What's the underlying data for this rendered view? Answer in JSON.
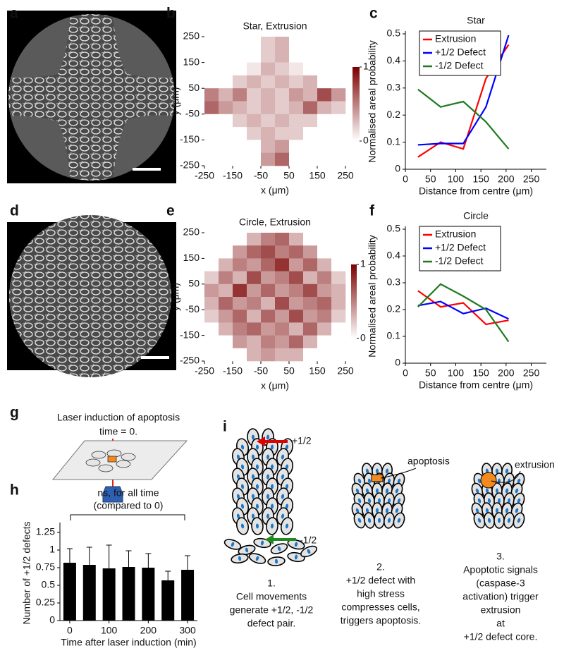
{
  "panel_labels": [
    "a",
    "b",
    "c",
    "d",
    "e",
    "f",
    "g",
    "h",
    "i"
  ],
  "panel_g": {
    "lines": [
      "Laser induction of apoptosis",
      "time = 0."
    ]
  },
  "panel_i": {
    "labels": [
      "+1/2",
      "-1/2",
      "apoptosis",
      "extrusion"
    ],
    "steps": [
      [
        "1.",
        "Cell movements",
        "generate +1/2, -1/2",
        "defect pair."
      ],
      [
        "2.",
        "+1/2 defect with",
        "high stress",
        "compresses cells,",
        "triggers apoptosis."
      ],
      [
        "3.",
        "Apoptotic signals",
        "(caspase-3",
        "activation) trigger",
        "extrusion",
        "at",
        "+1/2 defect core."
      ]
    ]
  },
  "chart_data": [
    {
      "type": "heatmap",
      "title": "Star, Extrusion",
      "x_label": "x (μm)",
      "y_label": "y (μm)",
      "xlim": [
        -250,
        250
      ],
      "ylim": [
        -250,
        250
      ],
      "xticks": [
        -250,
        -150,
        -50,
        50,
        150,
        250
      ],
      "yticks": [
        -250,
        -150,
        -50,
        50,
        150,
        250
      ],
      "clim": [
        0,
        1
      ],
      "colorbar_ticks": [
        0,
        1
      ],
      "colors": [
        "#ffffff",
        "#7a0000"
      ],
      "z": [
        [
          0,
          0,
          0,
          0,
          0.2,
          0.3,
          0,
          0,
          0,
          0
        ],
        [
          0,
          0,
          0,
          0,
          0.2,
          0.3,
          0,
          0,
          0,
          0
        ],
        [
          0,
          0,
          0,
          0.1,
          0.3,
          0.2,
          0.1,
          0,
          0,
          0
        ],
        [
          0,
          0,
          0.2,
          0.3,
          0.2,
          0.3,
          0.2,
          0.3,
          0,
          0
        ],
        [
          0.5,
          0.3,
          0.5,
          0.2,
          0.3,
          0.2,
          0.4,
          0.3,
          0.7,
          0.4
        ],
        [
          0.6,
          0.4,
          0.3,
          0.2,
          0.3,
          0.2,
          0.3,
          0.6,
          0.3,
          0.2
        ],
        [
          0,
          0,
          0.2,
          0.3,
          0.2,
          0.3,
          0.2,
          0.2,
          0,
          0
        ],
        [
          0,
          0,
          0,
          0.2,
          0.3,
          0.2,
          0.2,
          0,
          0,
          0
        ],
        [
          0,
          0,
          0,
          0,
          0.3,
          0.4,
          0,
          0,
          0,
          0
        ],
        [
          0,
          0,
          0,
          0,
          0.4,
          0.6,
          0,
          0,
          0,
          0
        ]
      ]
    },
    {
      "type": "line",
      "title": "Star",
      "x_label": "Distance from centre (μm)",
      "y_label": "Normalised areal probability",
      "x": [
        25,
        70,
        115,
        160,
        205
      ],
      "xlim": [
        0,
        280
      ],
      "ylim": [
        0,
        0.5
      ],
      "xticks": [
        0,
        50,
        100,
        150,
        200,
        250
      ],
      "yticks": [
        0,
        0.1,
        0.2,
        0.3,
        0.4,
        0.5
      ],
      "legend": "upper left",
      "series": [
        {
          "name": "Extrusion",
          "color": "#ff0000",
          "values": [
            0.045,
            0.1,
            0.075,
            0.335,
            0.46
          ]
        },
        {
          "name": "+1/2 Defect",
          "color": "#0000ff",
          "values": [
            0.09,
            0.095,
            0.095,
            0.23,
            0.495
          ]
        },
        {
          "name": "-1/2 Defect",
          "color": "#1f7a1f",
          "values": [
            0.295,
            0.23,
            0.25,
            0.175,
            0.075
          ]
        }
      ]
    },
    {
      "type": "heatmap",
      "title": "Circle, Extrusion",
      "x_label": "x (μm)",
      "y_label": "y (μm)",
      "xlim": [
        -250,
        250
      ],
      "ylim": [
        -250,
        250
      ],
      "xticks": [
        -250,
        -150,
        -50,
        50,
        150,
        250
      ],
      "yticks": [
        -250,
        -150,
        -50,
        50,
        150,
        250
      ],
      "clim": [
        0,
        1
      ],
      "colorbar_ticks": [
        0,
        1
      ],
      "colors": [
        "#ffffff",
        "#7a0000"
      ],
      "z": [
        [
          0,
          0,
          0,
          0.3,
          0.5,
          0.6,
          0.3,
          0,
          0,
          0
        ],
        [
          0,
          0,
          0.4,
          0.6,
          0.7,
          0.5,
          0.6,
          0.4,
          0,
          0
        ],
        [
          0,
          0.3,
          0.5,
          0.4,
          0.6,
          0.8,
          0.4,
          0.6,
          0.3,
          0
        ],
        [
          0.2,
          0.5,
          0.3,
          0.7,
          0.4,
          0.5,
          0.7,
          0.3,
          0.5,
          0.2
        ],
        [
          0.4,
          0.3,
          0.8,
          0.4,
          0.6,
          0.4,
          0.5,
          0.7,
          0.4,
          0.3
        ],
        [
          0.3,
          0.6,
          0.4,
          0.5,
          0.3,
          0.7,
          0.4,
          0.5,
          0.6,
          0.3
        ],
        [
          0.2,
          0.4,
          0.6,
          0.3,
          0.6,
          0.4,
          0.7,
          0.4,
          0.5,
          0.2
        ],
        [
          0,
          0.3,
          0.5,
          0.6,
          0.4,
          0.5,
          0.3,
          0.6,
          0.3,
          0
        ],
        [
          0,
          0,
          0.4,
          0.3,
          0.5,
          0.4,
          0.6,
          0.3,
          0,
          0
        ],
        [
          0,
          0,
          0,
          0.3,
          0.4,
          0.3,
          0.3,
          0,
          0,
          0
        ]
      ]
    },
    {
      "type": "line",
      "title": "Circle",
      "x_label": "Distance from centre (μm)",
      "y_label": "Normalised areal probability",
      "x": [
        25,
        70,
        115,
        160,
        205
      ],
      "xlim": [
        0,
        280
      ],
      "ylim": [
        0,
        0.5
      ],
      "xticks": [
        0,
        50,
        100,
        150,
        200,
        250
      ],
      "yticks": [
        0,
        0.1,
        0.2,
        0.3,
        0.4,
        0.5
      ],
      "legend": "upper left",
      "series": [
        {
          "name": "Extrusion",
          "color": "#ff0000",
          "values": [
            0.27,
            0.21,
            0.225,
            0.145,
            0.16
          ]
        },
        {
          "name": "+1/2 Defect",
          "color": "#0000ff",
          "values": [
            0.215,
            0.23,
            0.185,
            0.205,
            0.165
          ]
        },
        {
          "name": "-1/2 Defect",
          "color": "#1f7a1f",
          "values": [
            0.21,
            0.295,
            0.25,
            0.2,
            0.08
          ]
        }
      ]
    },
    {
      "type": "bar",
      "x_label": "Time after laser induction (min)",
      "y_label": "Number of +1/2 defects",
      "annotations": [
        "ns, for all time",
        "(compared to 0)"
      ],
      "x": [
        0,
        50,
        100,
        150,
        200,
        250,
        300
      ],
      "values": [
        0.82,
        0.79,
        0.74,
        0.76,
        0.75,
        0.57,
        0.72
      ],
      "errors": [
        0.2,
        0.25,
        0.33,
        0.23,
        0.2,
        0.13,
        0.2
      ],
      "color": "#000000",
      "xlim": [
        -25,
        325
      ],
      "ylim": [
        0,
        1.35
      ],
      "xticks": [
        0,
        100,
        200,
        300
      ],
      "yticks": [
        0,
        0.25,
        0.5,
        0.75,
        1,
        1.25
      ]
    }
  ]
}
